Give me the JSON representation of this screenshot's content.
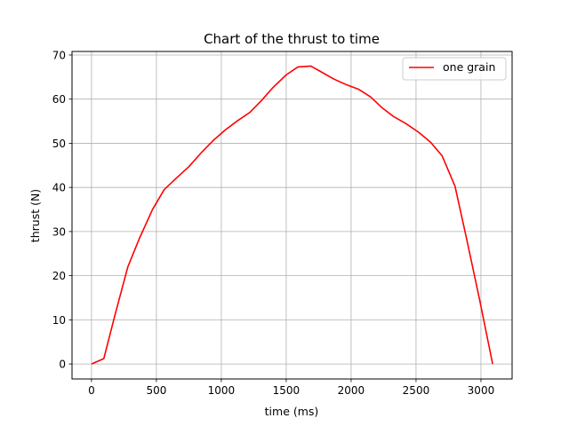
{
  "chart_data": {
    "type": "line",
    "title": "Chart of the thrust to time",
    "xlabel": "time (ms)",
    "ylabel": "thrust (N)",
    "xlim": [
      -150,
      3240
    ],
    "ylim": [
      -3.4,
      70.8
    ],
    "xticks": [
      0,
      500,
      1000,
      1500,
      2000,
      2500,
      3000
    ],
    "yticks": [
      0,
      10,
      20,
      30,
      40,
      50,
      60,
      70
    ],
    "xtick_labels": [
      "0",
      "500",
      "1000",
      "1500",
      "2000",
      "2500",
      "3000"
    ],
    "ytick_labels": [
      "0",
      "10",
      "20",
      "30",
      "40",
      "50",
      "60",
      "70"
    ],
    "grid": true,
    "legend_position": "top-right",
    "series": [
      {
        "name": "one grain",
        "color": "#ff0000",
        "x": [
          0,
          95,
          180,
          280,
          370,
          470,
          560,
          650,
          750,
          850,
          940,
          1030,
          1120,
          1220,
          1310,
          1400,
          1500,
          1590,
          1690,
          1780,
          1870,
          1970,
          2060,
          2150,
          2240,
          2330,
          2420,
          2520,
          2610,
          2700,
          2800,
          2890,
          2990,
          3090
        ],
        "y": [
          0,
          1.2,
          11,
          22,
          28.5,
          35,
          39.5,
          42,
          44.7,
          48,
          50.7,
          53,
          55,
          57,
          59.7,
          62.7,
          65.5,
          67.3,
          67.5,
          66,
          64.5,
          63.2,
          62.2,
          60.5,
          58,
          56,
          54.5,
          52.5,
          50.3,
          47.2,
          40.3,
          28.3,
          14.5,
          0
        ]
      }
    ]
  }
}
